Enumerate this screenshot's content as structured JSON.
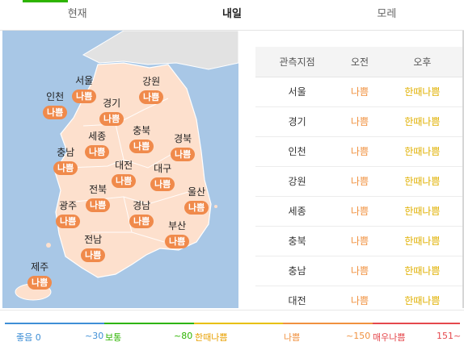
{
  "tabs": [
    {
      "label": "현재"
    },
    {
      "label": "내일"
    },
    {
      "label": "모레"
    }
  ],
  "map": {
    "regions": [
      {
        "name": "서울",
        "status": "나쁨"
      },
      {
        "name": "강원",
        "status": "나쁨"
      },
      {
        "name": "인천",
        "status": "나쁨"
      },
      {
        "name": "경기",
        "status": "나쁨"
      },
      {
        "name": "세종",
        "status": "나쁨"
      },
      {
        "name": "충북",
        "status": "나쁨"
      },
      {
        "name": "경북",
        "status": "나쁨"
      },
      {
        "name": "충남",
        "status": "나쁨"
      },
      {
        "name": "대전",
        "status": "나쁨"
      },
      {
        "name": "대구",
        "status": "나쁨"
      },
      {
        "name": "전북",
        "status": "나쁨"
      },
      {
        "name": "울산",
        "status": "나쁨"
      },
      {
        "name": "광주",
        "status": "나쁨"
      },
      {
        "name": "경남",
        "status": "나쁨"
      },
      {
        "name": "부산",
        "status": "나쁨"
      },
      {
        "name": "전남",
        "status": "나쁨"
      },
      {
        "name": "제주",
        "status": "나쁨"
      }
    ]
  },
  "table": {
    "headers": [
      "관측지점",
      "오전",
      "오후"
    ],
    "rows": [
      {
        "station": "서울",
        "am": "나쁨",
        "pm": "한때나쁨"
      },
      {
        "station": "경기",
        "am": "나쁨",
        "pm": "한때나쁨"
      },
      {
        "station": "인천",
        "am": "나쁨",
        "pm": "한때나쁨"
      },
      {
        "station": "강원",
        "am": "나쁨",
        "pm": "한때나쁨"
      },
      {
        "station": "세종",
        "am": "나쁨",
        "pm": "한때나쁨"
      },
      {
        "station": "충북",
        "am": "나쁨",
        "pm": "한때나쁨"
      },
      {
        "station": "충남",
        "am": "나쁨",
        "pm": "한때나쁨"
      },
      {
        "station": "대전",
        "am": "나쁨",
        "pm": "한때나쁨"
      }
    ]
  },
  "legend": {
    "items": [
      {
        "label": "좋음",
        "start": "0",
        "end": "~30",
        "color": "#3f8fd6"
      },
      {
        "label": "보통",
        "end": "~80",
        "color": "#2db400"
      },
      {
        "label": "한때나쁨",
        "color": "#e8c000"
      },
      {
        "label": "나쁨",
        "end": "~150",
        "color": "#f0913f"
      },
      {
        "label": "매우나쁨",
        "end": "151~",
        "color": "#e5484d"
      }
    ]
  },
  "colors": {
    "accent": "#2db400",
    "badge": "#f08a4b",
    "land": "#fde0cd",
    "sea": "#a8c7e6"
  }
}
